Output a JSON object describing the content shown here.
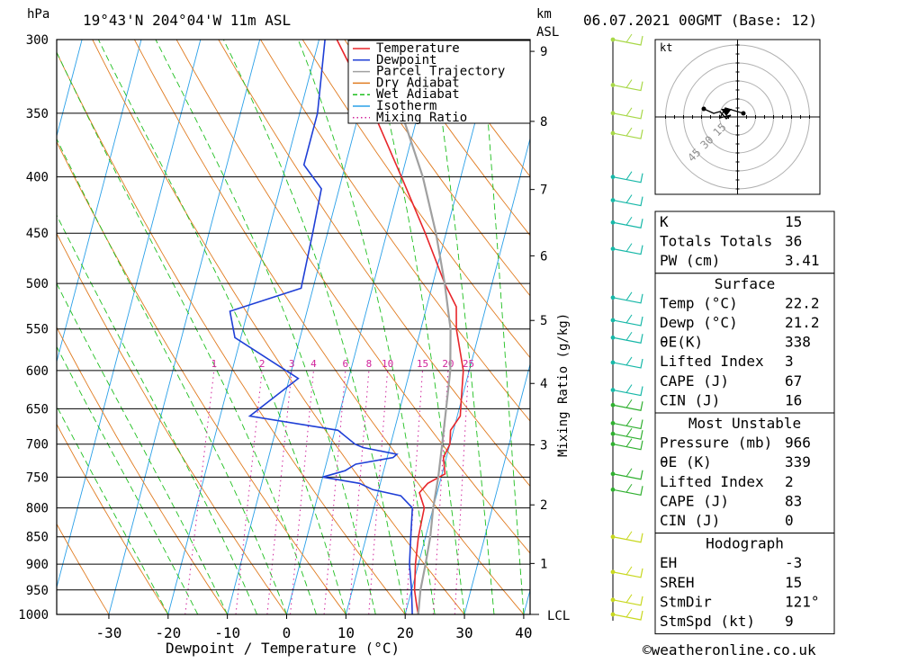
{
  "header": {
    "pressure_unit": "hPa",
    "location": "19°43'N  204°04'W  11m  ASL",
    "height_unit": "km",
    "height_unit_sub": "ASL",
    "datetime": "06.07.2021  00GMT  (Base: 12)"
  },
  "footer": {
    "copyright": "©weatheronline.co.uk"
  },
  "chart_data": {
    "type": "line",
    "title": "19°43'N  204°04'W  11m  ASL",
    "xlabel": "Dewpoint / Temperature (°C)",
    "ylabel": "hPa",
    "right_axis_label": "Mixing Ratio (g/kg)",
    "x_ticks": [
      -30,
      -20,
      -10,
      0,
      10,
      20,
      30,
      40
    ],
    "pressure_levels": [
      300,
      350,
      400,
      450,
      500,
      550,
      600,
      650,
      700,
      750,
      800,
      850,
      900,
      950,
      1000
    ],
    "height_ticks_km": [
      1,
      2,
      3,
      4,
      5,
      6,
      7,
      8,
      9
    ],
    "lcl_label": "LCL",
    "mixing_ratio_labels": [
      "1",
      "2",
      "3",
      "4",
      "6",
      "8",
      "10",
      "15",
      "20",
      "25"
    ],
    "legend": [
      {
        "name": "Temperature",
        "color": "#e8262b"
      },
      {
        "name": "Dewpoint",
        "color": "#1f3fd6"
      },
      {
        "name": "Parcel Trajectory",
        "color": "#a0a0a0"
      },
      {
        "name": "Dry Adiabat",
        "color": "#e07b20"
      },
      {
        "name": "Wet Adiabat",
        "color": "#1fbf1f"
      },
      {
        "name": "Isotherm",
        "color": "#2aa0e8"
      },
      {
        "name": "Mixing Ratio",
        "color": "#d0239b"
      }
    ],
    "series": [
      {
        "name": "Temperature",
        "points": [
          [
            1000,
            22.2
          ],
          [
            980,
            21.5
          ],
          [
            950,
            20.5
          ],
          [
            900,
            19.5
          ],
          [
            850,
            18.8
          ],
          [
            800,
            18.5
          ],
          [
            775,
            17
          ],
          [
            760,
            18
          ],
          [
            745,
            20.5
          ],
          [
            720,
            19.5
          ],
          [
            700,
            20.0
          ],
          [
            680,
            19.5
          ],
          [
            660,
            20.5
          ],
          [
            640,
            20.0
          ],
          [
            600,
            19.0
          ],
          [
            550,
            16.0
          ],
          [
            525,
            15.0
          ],
          [
            500,
            12.0
          ],
          [
            450,
            6.5
          ],
          [
            400,
            0.0
          ],
          [
            350,
            -7.5
          ],
          [
            300,
            -17.0
          ]
        ]
      },
      {
        "name": "Dewpoint",
        "points": [
          [
            1000,
            21.2
          ],
          [
            950,
            20.0
          ],
          [
            900,
            18.5
          ],
          [
            850,
            17.5
          ],
          [
            800,
            16.5
          ],
          [
            780,
            14.0
          ],
          [
            770,
            9.0
          ],
          [
            760,
            6.5
          ],
          [
            750,
            0.0
          ],
          [
            740,
            3.5
          ],
          [
            730,
            5.0
          ],
          [
            720,
            11.0
          ],
          [
            715,
            11.5
          ],
          [
            705,
            5.5
          ],
          [
            700,
            4.0
          ],
          [
            680,
            0.5
          ],
          [
            660,
            -15.0
          ],
          [
            610,
            -8.5
          ],
          [
            560,
            -21.0
          ],
          [
            530,
            -23.0
          ],
          [
            505,
            -12.0
          ],
          [
            450,
            -12.5
          ],
          [
            410,
            -13.0
          ],
          [
            390,
            -17.0
          ],
          [
            350,
            -17.0
          ],
          [
            300,
            -19.0
          ]
        ]
      },
      {
        "name": "Parcel Trajectory",
        "points": [
          [
            1000,
            22.2
          ],
          [
            950,
            21.5
          ],
          [
            900,
            21.2
          ],
          [
            850,
            20.8
          ],
          [
            800,
            20.0
          ],
          [
            750,
            19.5
          ],
          [
            700,
            18.7
          ],
          [
            650,
            17.8
          ],
          [
            600,
            16.8
          ],
          [
            550,
            15.0
          ],
          [
            500,
            12.0
          ],
          [
            450,
            8.3
          ],
          [
            400,
            3.6
          ],
          [
            350,
            -2.8
          ],
          [
            300,
            -11.0
          ]
        ]
      }
    ],
    "wind_barbs_pressure": [
      300,
      330,
      350,
      365,
      400,
      420,
      440,
      465,
      515,
      540,
      560,
      590,
      625,
      645,
      670,
      685,
      700,
      745,
      770,
      850,
      915,
      970,
      1000
    ]
  },
  "hodograph": {
    "unit": "kt",
    "ring_labels": [
      "15",
      "30",
      "45"
    ]
  },
  "indices": {
    "top": [
      {
        "label": "K",
        "value": "15"
      },
      {
        "label": "Totals Totals",
        "value": "36"
      },
      {
        "label": "PW (cm)",
        "value": "3.41"
      }
    ],
    "surface": {
      "title": "Surface",
      "rows": [
        {
          "label": "Temp (°C)",
          "value": "22.2"
        },
        {
          "label": "Dewp (°C)",
          "value": "21.2"
        },
        {
          "label": "θE(K)",
          "value": "338"
        },
        {
          "label": "Lifted Index",
          "value": "3"
        },
        {
          "label": "CAPE (J)",
          "value": "67"
        },
        {
          "label": "CIN (J)",
          "value": "16"
        }
      ]
    },
    "most_unstable": {
      "title": "Most Unstable",
      "rows": [
        {
          "label": "Pressure (mb)",
          "value": "966"
        },
        {
          "label": "θE (K)",
          "value": "339"
        },
        {
          "label": "Lifted Index",
          "value": "2"
        },
        {
          "label": "CAPE (J)",
          "value": "83"
        },
        {
          "label": "CIN (J)",
          "value": "0"
        }
      ]
    },
    "hodograph_section": {
      "title": "Hodograph",
      "rows": [
        {
          "label": "EH",
          "value": "-3"
        },
        {
          "label": "SREH",
          "value": "15"
        },
        {
          "label": "StmDir",
          "value": "121°"
        },
        {
          "label": "StmSpd (kt)",
          "value": "9"
        }
      ]
    }
  }
}
